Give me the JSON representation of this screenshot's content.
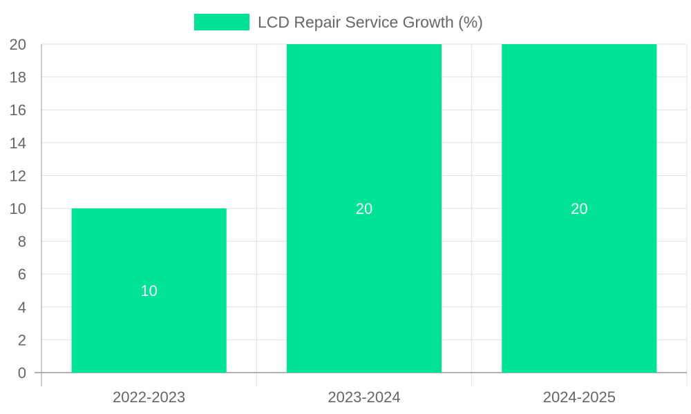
{
  "colors": {
    "bar": "#00e396",
    "grid": "#e0e0e0",
    "axis": "#999999",
    "label": "#666666",
    "bar_label": "#ffffff"
  },
  "chart_data": {
    "type": "bar",
    "legend": "LCD Repair Service Growth (%)",
    "legend_position": "top-center",
    "categories": [
      "2022-2023",
      "2023-2024",
      "2024-2025"
    ],
    "series": [
      {
        "name": "LCD Repair Service Growth (%)",
        "values": [
          10,
          20,
          20
        ]
      }
    ],
    "ylim": [
      0,
      20
    ],
    "yticks": [
      0,
      2,
      4,
      6,
      8,
      10,
      12,
      14,
      16,
      18,
      20
    ],
    "grid": true,
    "data_labels": [
      "10",
      "20",
      "20"
    ]
  }
}
